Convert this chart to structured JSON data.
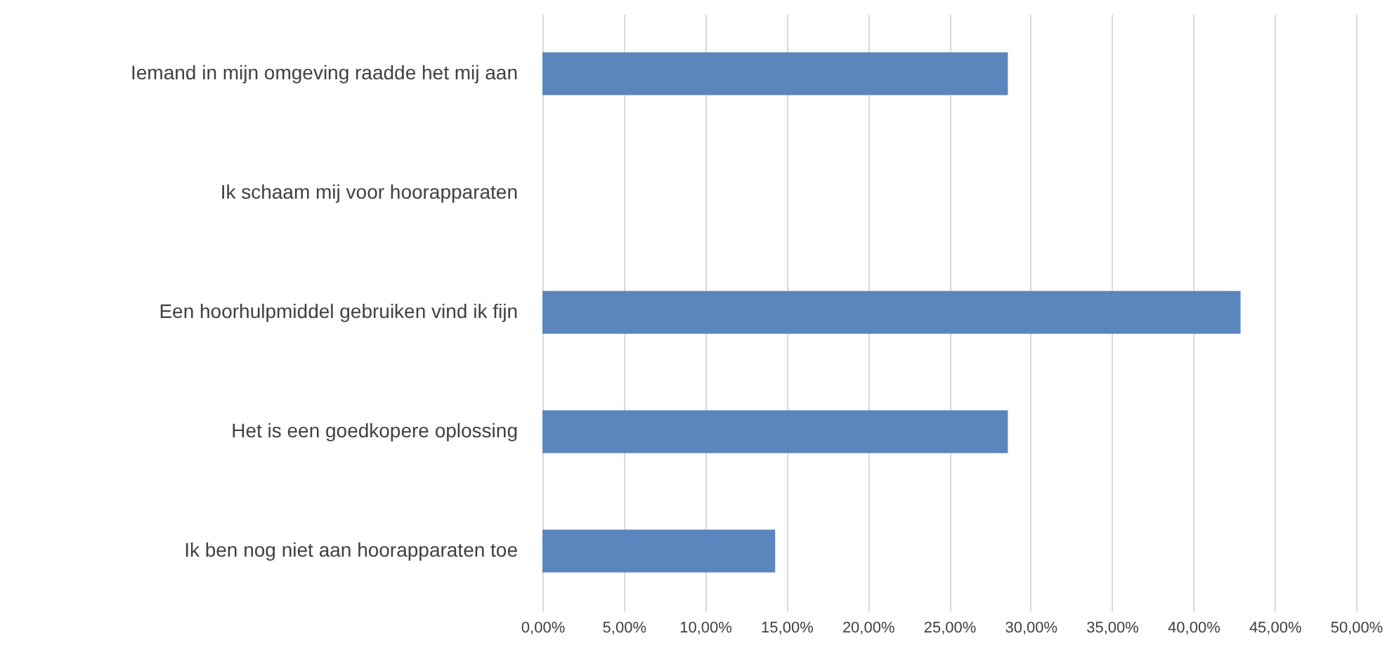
{
  "chart_data": {
    "type": "bar",
    "orientation": "horizontal",
    "categories": [
      "Iemand in mijn omgeving raadde het mij aan",
      "Ik schaam mij voor hoorapparaten",
      "Een hoorhulpmiddel gebruiken vind ik fijn",
      "Het is een goedkopere oplossing",
      "Ik ben nog niet aan hoorapparaten toe"
    ],
    "values": [
      28.6,
      0,
      42.9,
      28.6,
      14.3
    ],
    "color": "#5b85bd",
    "xlim": [
      0,
      50
    ],
    "xticks": [
      {
        "value": 0,
        "label": "0,00%"
      },
      {
        "value": 5,
        "label": "5,00%"
      },
      {
        "value": 10,
        "label": "10,00%"
      },
      {
        "value": 15,
        "label": "15,00%"
      },
      {
        "value": 20,
        "label": "20,00%"
      },
      {
        "value": 25,
        "label": "25,00%"
      },
      {
        "value": 30,
        "label": "30,00%"
      },
      {
        "value": 35,
        "label": "35,00%"
      },
      {
        "value": 40,
        "label": "40,00%"
      },
      {
        "value": 45,
        "label": "45,00%"
      },
      {
        "value": 50,
        "label": "50,00%"
      }
    ],
    "grid": "x"
  }
}
